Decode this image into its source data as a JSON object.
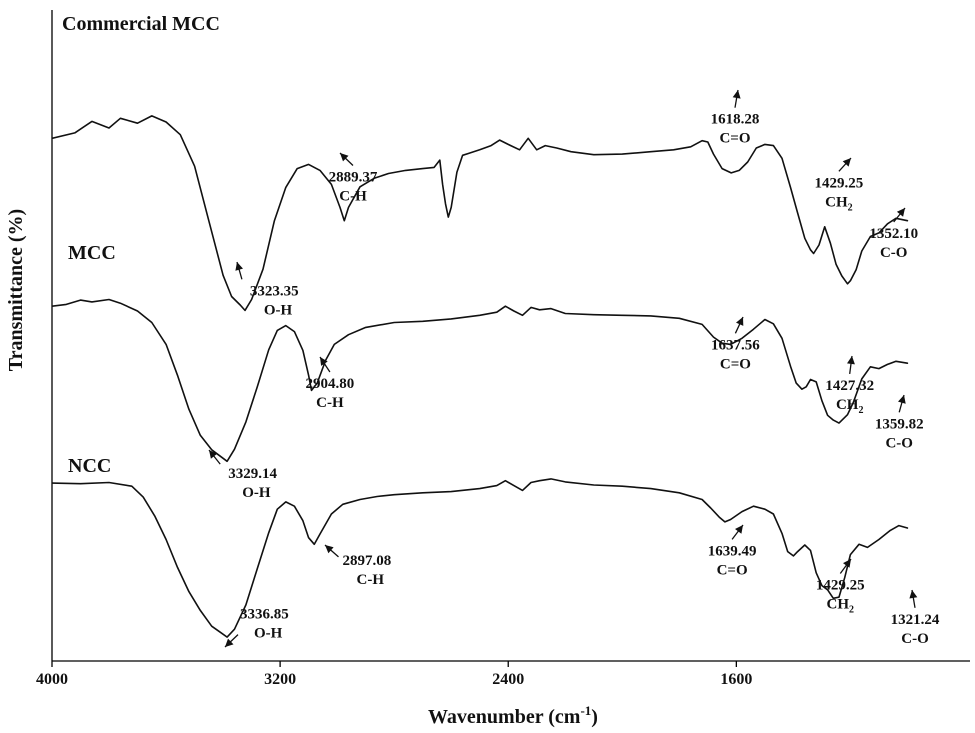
{
  "chart_data": {
    "type": "line",
    "title": "",
    "xlabel": "Wavenumber (cm",
    "xlabel_sup": "-1",
    "xlabel_close": ")",
    "ylabel": "Transmittance (%)",
    "xlim": [
      4000,
      500
    ],
    "ylim": [
      0,
      100
    ],
    "x_ticks": [
      {
        "value": 4000,
        "label": "4000"
      },
      {
        "value": 3200,
        "label": "3200"
      },
      {
        "value": 2400,
        "label": "2400"
      },
      {
        "value": 1600,
        "label": "1600"
      }
    ],
    "grid": false,
    "legend": "none",
    "series": [
      {
        "name": "Commercial  MCC",
        "points": [
          [
            4000,
            84.6
          ],
          [
            3920,
            85.5
          ],
          [
            3860,
            87.4
          ],
          [
            3800,
            86.3
          ],
          [
            3760,
            87.9
          ],
          [
            3700,
            87.1
          ],
          [
            3650,
            88.3
          ],
          [
            3600,
            87.3
          ],
          [
            3550,
            85.2
          ],
          [
            3500,
            80.0
          ],
          [
            3450,
            71.0
          ],
          [
            3400,
            62.0
          ],
          [
            3370,
            58.5
          ],
          [
            3340,
            57.1
          ],
          [
            3323,
            56.2
          ],
          [
            3300,
            58.0
          ],
          [
            3260,
            63.0
          ],
          [
            3220,
            71.0
          ],
          [
            3180,
            76.5
          ],
          [
            3140,
            79.6
          ],
          [
            3100,
            80.3
          ],
          [
            3060,
            79.3
          ],
          [
            3020,
            77.0
          ],
          [
            2990,
            73.2
          ],
          [
            2975,
            71.0
          ],
          [
            2960,
            73.2
          ],
          [
            2920,
            76.6
          ],
          [
            2870,
            78.0
          ],
          [
            2820,
            78.8
          ],
          [
            2760,
            79.3
          ],
          [
            2700,
            79.6
          ],
          [
            2660,
            79.8
          ],
          [
            2640,
            81.0
          ],
          [
            2630,
            77.0
          ],
          [
            2620,
            73.8
          ],
          [
            2610,
            71.6
          ],
          [
            2600,
            73.2
          ],
          [
            2580,
            79.0
          ],
          [
            2560,
            81.8
          ],
          [
            2540,
            82.1
          ],
          [
            2500,
            82.7
          ],
          [
            2460,
            83.4
          ],
          [
            2430,
            84.3
          ],
          [
            2400,
            83.6
          ],
          [
            2360,
            82.7
          ],
          [
            2330,
            84.6
          ],
          [
            2300,
            82.7
          ],
          [
            2270,
            83.4
          ],
          [
            2230,
            83.0
          ],
          [
            2180,
            82.4
          ],
          [
            2100,
            81.9
          ],
          [
            2000,
            82.0
          ],
          [
            1900,
            82.4
          ],
          [
            1820,
            82.7
          ],
          [
            1760,
            83.2
          ],
          [
            1720,
            84.2
          ],
          [
            1700,
            84.0
          ],
          [
            1680,
            82.0
          ],
          [
            1650,
            79.6
          ],
          [
            1618,
            78.9
          ],
          [
            1590,
            79.3
          ],
          [
            1560,
            80.7
          ],
          [
            1530,
            83.0
          ],
          [
            1500,
            83.6
          ],
          [
            1470,
            83.4
          ],
          [
            1440,
            81.3
          ],
          [
            1410,
            76.5
          ],
          [
            1385,
            72.3
          ],
          [
            1360,
            68.1
          ],
          [
            1340,
            66.2
          ],
          [
            1329,
            65.6
          ],
          [
            1310,
            67.0
          ],
          [
            1290,
            70.0
          ],
          [
            1270,
            67.3
          ],
          [
            1250,
            63.8
          ],
          [
            1230,
            61.9
          ],
          [
            1210,
            60.6
          ],
          [
            1200,
            61.1
          ],
          [
            1180,
            62.9
          ],
          [
            1160,
            66.0
          ],
          [
            1130,
            68.4
          ],
          [
            1100,
            69.0
          ],
          [
            1070,
            70.5
          ],
          [
            1040,
            71.4
          ],
          [
            1000,
            71.0
          ]
        ],
        "annotations": [
          {
            "x": 3323.35,
            "value": "3323.35",
            "group": "O-H"
          },
          {
            "x": 2889.37,
            "value": "2889.37",
            "group": "C-H"
          },
          {
            "x": 1618.28,
            "value": "1618.28",
            "group": "C=O"
          },
          {
            "x": 1429.25,
            "value": "1429.25",
            "group": "CH",
            "group_sub": "2"
          },
          {
            "x": 1352.1,
            "value": "1352.10",
            "group": "C-O"
          }
        ]
      },
      {
        "name": "MCC",
        "points": [
          [
            4000,
            56.9
          ],
          [
            3950,
            57.2
          ],
          [
            3900,
            57.9
          ],
          [
            3860,
            57.6
          ],
          [
            3800,
            58.0
          ],
          [
            3760,
            57.4
          ],
          [
            3700,
            56.1
          ],
          [
            3650,
            54.2
          ],
          [
            3600,
            50.6
          ],
          [
            3560,
            45.5
          ],
          [
            3520,
            39.9
          ],
          [
            3480,
            35.6
          ],
          [
            3440,
            33.2
          ],
          [
            3400,
            31.8
          ],
          [
            3386,
            31.3
          ],
          [
            3360,
            33.3
          ],
          [
            3320,
            37.8
          ],
          [
            3280,
            43.6
          ],
          [
            3240,
            49.7
          ],
          [
            3210,
            52.9
          ],
          [
            3180,
            53.7
          ],
          [
            3150,
            52.7
          ],
          [
            3120,
            49.6
          ],
          [
            3100,
            45.5
          ],
          [
            3090,
            43.0
          ],
          [
            3070,
            44.2
          ],
          [
            3040,
            48.0
          ],
          [
            3010,
            50.6
          ],
          [
            2960,
            52.2
          ],
          [
            2900,
            53.4
          ],
          [
            2800,
            54.2
          ],
          [
            2700,
            54.4
          ],
          [
            2600,
            54.8
          ],
          [
            2500,
            55.4
          ],
          [
            2440,
            55.9
          ],
          [
            2410,
            56.9
          ],
          [
            2380,
            56.1
          ],
          [
            2350,
            55.4
          ],
          [
            2320,
            56.7
          ],
          [
            2290,
            56.3
          ],
          [
            2250,
            56.5
          ],
          [
            2200,
            55.7
          ],
          [
            2100,
            55.5
          ],
          [
            2000,
            55.4
          ],
          [
            1900,
            55.3
          ],
          [
            1800,
            54.9
          ],
          [
            1720,
            53.9
          ],
          [
            1680,
            51.8
          ],
          [
            1650,
            50.8
          ],
          [
            1620,
            50.6
          ],
          [
            1580,
            51.6
          ],
          [
            1540,
            53.1
          ],
          [
            1500,
            54.7
          ],
          [
            1470,
            54.0
          ],
          [
            1440,
            51.6
          ],
          [
            1410,
            47.0
          ],
          [
            1390,
            44.2
          ],
          [
            1370,
            43.2
          ],
          [
            1355,
            43.6
          ],
          [
            1340,
            44.8
          ],
          [
            1320,
            44.4
          ],
          [
            1300,
            41.3
          ],
          [
            1280,
            38.9
          ],
          [
            1260,
            38.1
          ],
          [
            1240,
            37.6
          ],
          [
            1210,
            39.0
          ],
          [
            1190,
            41.0
          ],
          [
            1160,
            44.9
          ],
          [
            1130,
            46.9
          ],
          [
            1100,
            46.6
          ],
          [
            1070,
            47.3
          ],
          [
            1040,
            47.8
          ],
          [
            1000,
            47.5
          ]
        ],
        "annotations": [
          {
            "x": 3329.14,
            "value": "3329.14",
            "group": "O-H"
          },
          {
            "x": 2904.8,
            "value": "2904.80",
            "group": "C-H"
          },
          {
            "x": 1637.56,
            "value": "1637.56",
            "group": "C=O"
          },
          {
            "x": 1427.32,
            "value": "1427.32",
            "group": "CH",
            "group_sub": "2"
          },
          {
            "x": 1359.82,
            "value": "1359.82",
            "group": "C-O"
          }
        ]
      },
      {
        "name": "NCC",
        "points": [
          [
            4000,
            27.7
          ],
          [
            3900,
            27.6
          ],
          [
            3800,
            27.8
          ],
          [
            3720,
            27.2
          ],
          [
            3680,
            25.4
          ],
          [
            3640,
            22.3
          ],
          [
            3600,
            18.4
          ],
          [
            3560,
            13.8
          ],
          [
            3520,
            9.8
          ],
          [
            3480,
            6.7
          ],
          [
            3440,
            4.1
          ],
          [
            3410,
            3.1
          ],
          [
            3386,
            2.3
          ],
          [
            3360,
            3.6
          ],
          [
            3320,
            7.6
          ],
          [
            3280,
            13.6
          ],
          [
            3240,
            19.5
          ],
          [
            3210,
            23.4
          ],
          [
            3180,
            24.6
          ],
          [
            3150,
            23.9
          ],
          [
            3120,
            21.5
          ],
          [
            3100,
            18.7
          ],
          [
            3080,
            17.6
          ],
          [
            3060,
            19.3
          ],
          [
            3020,
            22.6
          ],
          [
            2980,
            24.2
          ],
          [
            2920,
            25.0
          ],
          [
            2860,
            25.5
          ],
          [
            2800,
            25.8
          ],
          [
            2700,
            26.1
          ],
          [
            2600,
            26.3
          ],
          [
            2500,
            26.8
          ],
          [
            2440,
            27.3
          ],
          [
            2410,
            28.1
          ],
          [
            2380,
            27.3
          ],
          [
            2350,
            26.5
          ],
          [
            2320,
            27.8
          ],
          [
            2290,
            28.1
          ],
          [
            2250,
            28.4
          ],
          [
            2200,
            27.9
          ],
          [
            2100,
            27.4
          ],
          [
            2000,
            27.2
          ],
          [
            1900,
            26.8
          ],
          [
            1800,
            26.1
          ],
          [
            1720,
            25.0
          ],
          [
            1690,
            23.6
          ],
          [
            1660,
            22.1
          ],
          [
            1640,
            21.3
          ],
          [
            1620,
            21.7
          ],
          [
            1580,
            23.0
          ],
          [
            1540,
            23.9
          ],
          [
            1500,
            23.4
          ],
          [
            1470,
            22.6
          ],
          [
            1440,
            19.4
          ],
          [
            1420,
            16.4
          ],
          [
            1400,
            15.7
          ],
          [
            1385,
            16.4
          ],
          [
            1360,
            17.5
          ],
          [
            1340,
            16.6
          ],
          [
            1320,
            12.9
          ],
          [
            1300,
            10.8
          ],
          [
            1280,
            10.1
          ],
          [
            1260,
            8.7
          ],
          [
            1240,
            8.9
          ],
          [
            1220,
            12.1
          ],
          [
            1200,
            15.9
          ],
          [
            1170,
            17.6
          ],
          [
            1140,
            17.1
          ],
          [
            1100,
            18.4
          ],
          [
            1060,
            19.9
          ],
          [
            1030,
            20.7
          ],
          [
            1000,
            20.3
          ]
        ],
        "annotations": [
          {
            "x": 3336.85,
            "value": "3336.85",
            "group": "O-H"
          },
          {
            "x": 2897.08,
            "value": "2897.08",
            "group": "C-H"
          },
          {
            "x": 1639.49,
            "value": "1639.49",
            "group": "C=O"
          },
          {
            "x": 1429.25,
            "value": "1429.25",
            "group": "CH",
            "group_sub": "2"
          },
          {
            "x": 1321.24,
            "value": "1321.24",
            "group": "C-O"
          }
        ]
      }
    ]
  }
}
